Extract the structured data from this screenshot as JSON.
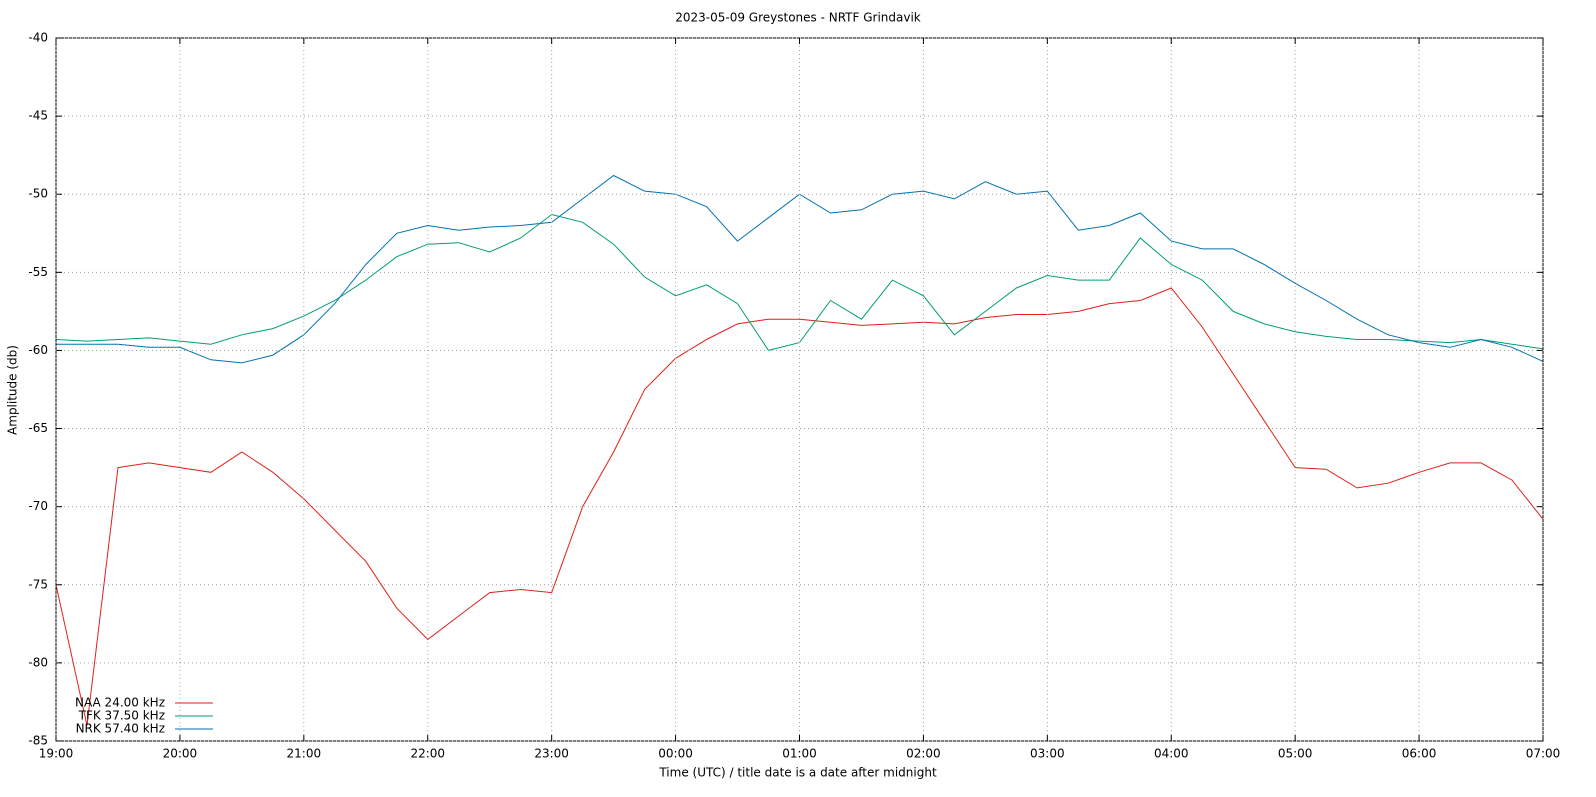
{
  "chart_data": {
    "type": "line",
    "title": "2023-05-09 Greystones - NRTF Grindavik",
    "x_label": "Time (UTC) / title date is a date after midnight",
    "y_label": "Amplitude (db)",
    "x": [
      19,
      19.25,
      19.5,
      19.75,
      20,
      20.25,
      20.5,
      20.75,
      21,
      21.25,
      21.5,
      21.75,
      22,
      22.25,
      22.5,
      22.75,
      23,
      23.25,
      23.5,
      23.75,
      24,
      24.25,
      24.5,
      24.75,
      25,
      25.25,
      25.5,
      25.75,
      26,
      26.25,
      26.5,
      26.75,
      27,
      27.25,
      27.5,
      27.75,
      28,
      28.25,
      28.5,
      28.75,
      29,
      29.25,
      29.5,
      29.75,
      30,
      30.25,
      30.5,
      30.75,
      31
    ],
    "series": [
      {
        "name": "NAA 24.00 kHz",
        "color": "#e0201a",
        "values": [
          -75,
          -84,
          -67.5,
          -67.2,
          -67.5,
          -67.8,
          -66.5,
          -67.8,
          -69.5,
          -71.5,
          -73.5,
          -76.5,
          -78.5,
          -77,
          -75.5,
          -75.3,
          -75.5,
          -70,
          -66.5,
          -62.5,
          -60.5,
          -59.3,
          -58.3,
          -58,
          -58,
          -58.2,
          -58.4,
          -58.3,
          -58.2,
          -58.3,
          -57.9,
          -57.7,
          -57.7,
          -57.5,
          -57,
          -56.8,
          -56,
          -58.5,
          -61.5,
          -64.5,
          -67.5,
          -67.6,
          -68.8,
          -68.5,
          -67.8,
          -67.2,
          -67.2,
          -68.3,
          -70.8
        ]
      },
      {
        "name": "TFK 37.50 kHz",
        "color": "#009e73",
        "values": [
          -59.3,
          -59.4,
          -59.3,
          -59.2,
          -59.4,
          -59.6,
          -59,
          -58.6,
          -57.8,
          -56.8,
          -55.5,
          -54,
          -53.2,
          -53.1,
          -53.7,
          -52.8,
          -51.3,
          -51.8,
          -53.2,
          -55.3,
          -56.5,
          -55.8,
          -57,
          -60,
          -59.5,
          -56.8,
          -58,
          -55.5,
          -56.5,
          -59,
          -57.5,
          -56,
          -55.2,
          -55.5,
          -55.5,
          -52.8,
          -54.5,
          -55.5,
          -57.5,
          -58.3,
          -58.8,
          -59.1,
          -59.3,
          -59.3,
          -59.4,
          -59.5,
          -59.3,
          -59.6,
          -59.9
        ]
      },
      {
        "name": "NRK 57.40 kHz",
        "color": "#0072b2",
        "values": [
          -59.6,
          -59.6,
          -59.6,
          -59.8,
          -59.8,
          -60.6,
          -60.8,
          -60.3,
          -59,
          -57,
          -54.5,
          -52.5,
          -52,
          -52.3,
          -52.1,
          -52,
          -51.8,
          -50.3,
          -48.8,
          -49.8,
          -50,
          -50.8,
          -53,
          -51.5,
          -50,
          -51.2,
          -51,
          -50,
          -49.8,
          -50.3,
          -49.2,
          -50,
          -49.8,
          -52.3,
          -52,
          -51.2,
          -53,
          -53.5,
          -53.5,
          -54.5,
          -55.7,
          -56.8,
          -58,
          -59,
          -59.5,
          -59.8,
          -59.3,
          -59.8,
          -60.7
        ]
      }
    ],
    "xlim": [
      19,
      31
    ],
    "xticks": [
      {
        "value": 19,
        "label": "19:00"
      },
      {
        "value": 20,
        "label": "20:00"
      },
      {
        "value": 21,
        "label": "21:00"
      },
      {
        "value": 22,
        "label": "22:00"
      },
      {
        "value": 23,
        "label": "23:00"
      },
      {
        "value": 24,
        "label": "00:00"
      },
      {
        "value": 25,
        "label": "01:00"
      },
      {
        "value": 26,
        "label": "02:00"
      },
      {
        "value": 27,
        "label": "03:00"
      },
      {
        "value": 28,
        "label": "04:00"
      },
      {
        "value": 29,
        "label": "05:00"
      },
      {
        "value": 30,
        "label": "06:00"
      },
      {
        "value": 31,
        "label": "07:00"
      }
    ],
    "ylim": [
      -85,
      -40
    ],
    "yticks": [
      -85,
      -80,
      -75,
      -70,
      -65,
      -60,
      -55,
      -50,
      -45,
      -40
    ],
    "grid": true,
    "legend": "bottom left"
  }
}
